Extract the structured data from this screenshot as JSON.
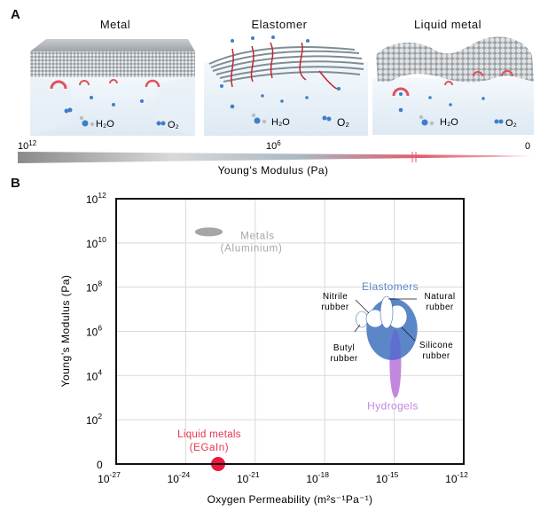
{
  "panel_a": {
    "letter": "A",
    "scenes": [
      {
        "title": "Metal",
        "water_label": "H₂O",
        "oxygen_label": "O₂"
      },
      {
        "title": "Elastomer",
        "water_label": "H₂O",
        "oxygen_label": "O₂"
      },
      {
        "title": "Liquid metal",
        "water_label": "H₂O",
        "oxygen_label": "O₂"
      }
    ],
    "scale_bar": {
      "left_label_base": "10",
      "left_label_exp": "12",
      "mid_label_base": "10",
      "mid_label_exp": "6",
      "right_label": "0",
      "axis_label": "Young’s Modulus (Pa)",
      "colors": {
        "stiff": "#8e8e8e",
        "mid": "#b9c7d1",
        "soft": "#e25565"
      }
    }
  },
  "panel_b": {
    "letter": "B"
  },
  "chart_data": {
    "type": "scatter",
    "title": "",
    "xlabel": "Oxygen Permeability (m²s⁻¹Pa⁻¹)",
    "ylabel": "Young’s Modulus (Pa)",
    "xscale": "log",
    "yscale": "log",
    "xlim_exp": [
      -27,
      -12
    ],
    "ylim_exp": [
      0,
      12
    ],
    "grid": true,
    "x_ticks": [
      {
        "base": "10",
        "exp": "-27",
        "value_exp": -27
      },
      {
        "base": "10",
        "exp": "-24",
        "value_exp": -24
      },
      {
        "base": "10",
        "exp": "-21",
        "value_exp": -21
      },
      {
        "base": "10",
        "exp": "-18",
        "value_exp": -18
      },
      {
        "base": "10",
        "exp": "-15",
        "value_exp": -15
      },
      {
        "base": "10",
        "exp": "-12",
        "value_exp": -12
      }
    ],
    "y_ticks": [
      {
        "base": "0",
        "exp": "",
        "value_exp": 0
      },
      {
        "base": "10",
        "exp": "2",
        "value_exp": 2
      },
      {
        "base": "10",
        "exp": "4",
        "value_exp": 4
      },
      {
        "base": "10",
        "exp": "6",
        "value_exp": 6
      },
      {
        "base": "10",
        "exp": "8",
        "value_exp": 8
      },
      {
        "base": "10",
        "exp": "10",
        "value_exp": 10
      },
      {
        "base": "10",
        "exp": "12",
        "value_exp": 12
      }
    ],
    "regions": [
      {
        "name": "Metals",
        "sublabel": "(Aluminium)",
        "color": "#a6a6a6",
        "shape": "ellipse",
        "x_exp_range": [
          -23.6,
          -22.4
        ],
        "y_exp_range": [
          10.3,
          10.7
        ]
      },
      {
        "name": "Elastomers",
        "sublabel": "",
        "color": "#5b86c8",
        "shape": "ellipse",
        "x_exp_range": [
          -16.2,
          -14.0
        ],
        "y_exp_range": [
          4.7,
          7.5
        ]
      },
      {
        "name": "Hydrogels",
        "sublabel": "",
        "color": "#c287de",
        "shape": "ellipse",
        "x_exp_range": [
          -15.2,
          -14.7
        ],
        "y_exp_range": [
          3.0,
          6.1
        ]
      },
      {
        "name": "Liquid metals",
        "sublabel": "(EGaIn)",
        "color": "#ee1540",
        "shape": "circle",
        "x_exp_center": -22.6,
        "y_exp_center": 0
      }
    ],
    "sub_regions": [
      {
        "name": "Nitrile rubber",
        "line1": "Nitrile",
        "line2": "rubber"
      },
      {
        "name": "Natural rubber",
        "line1": "Natural",
        "line2": "rubber"
      },
      {
        "name": "Butyl rubber",
        "line1": "Butyl",
        "line2": "rubber"
      },
      {
        "name": "Silicone rubber",
        "line1": "Silicone",
        "line2": "rubber"
      }
    ]
  }
}
